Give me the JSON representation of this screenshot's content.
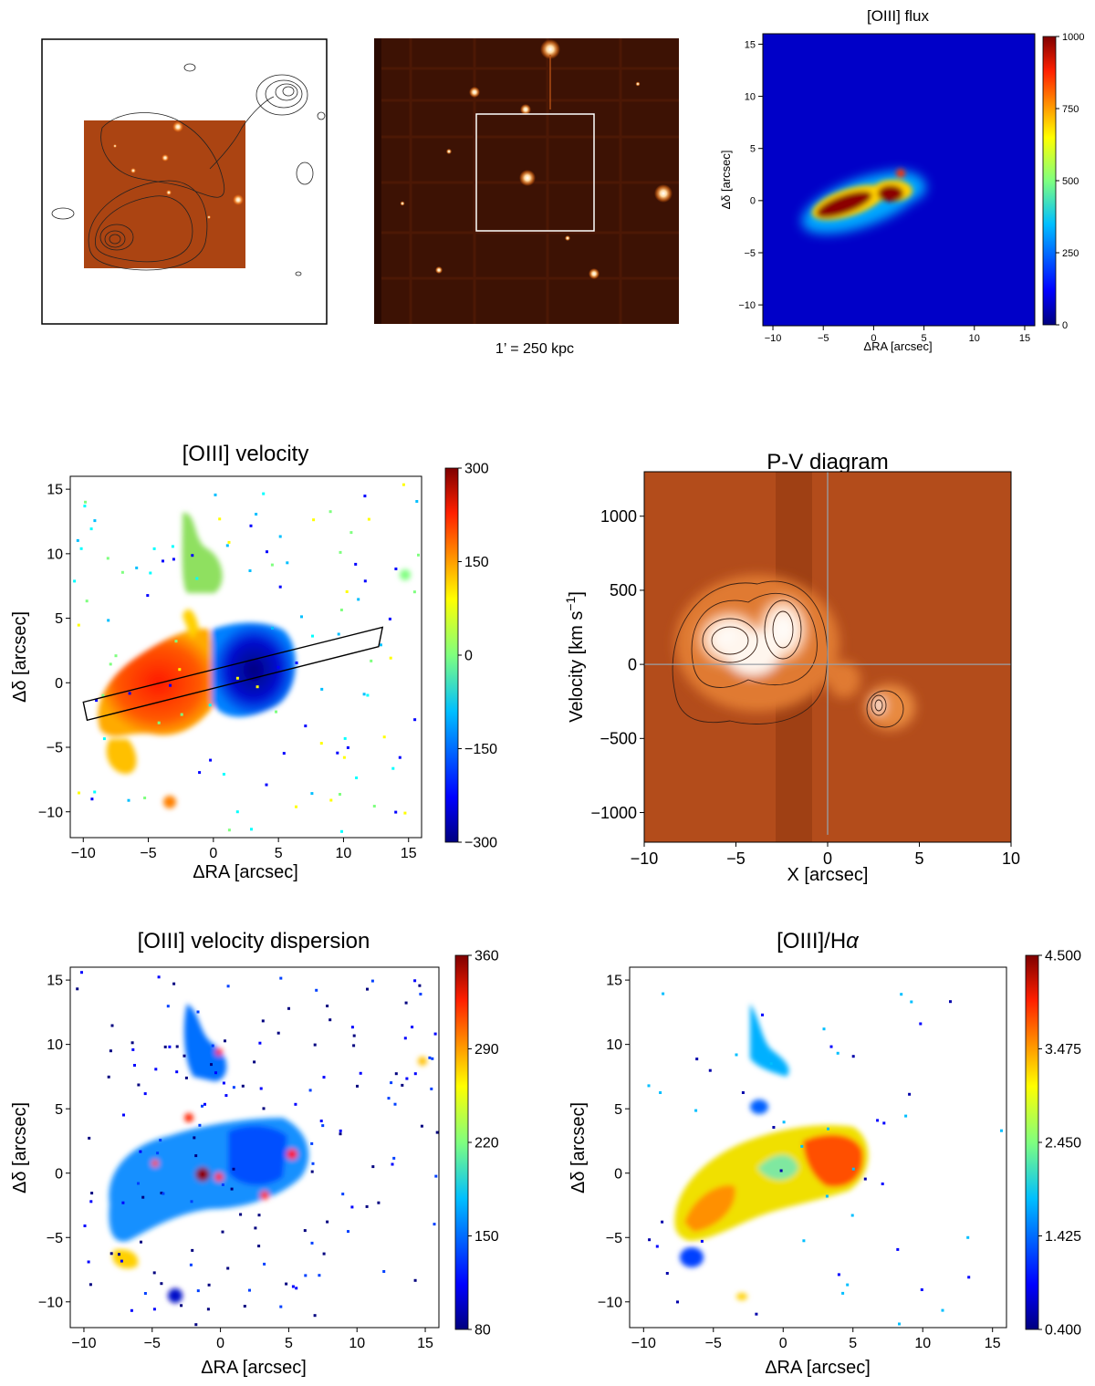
{
  "figure": {
    "scale_caption": "1’ = 250 kpc"
  },
  "colors": {
    "jet_stops": [
      "#00007f",
      "#0000ff",
      "#007fff",
      "#00ffff",
      "#7fff7f",
      "#ffff00",
      "#ff7f00",
      "#ff0000",
      "#7f0000"
    ],
    "hot_stops": [
      "#1a0500",
      "#5a1800",
      "#a63b00",
      "#e06a20",
      "#ffb070",
      "#ffffff"
    ],
    "grid_line": "#9aa0a6",
    "frame": "#000000"
  },
  "chart_data": [
    {
      "id": "radio-overlay",
      "type": "image",
      "title": "",
      "description_only": true
    },
    {
      "id": "wide-field",
      "type": "image",
      "title": "",
      "caption": "1’ = 250 kpc"
    },
    {
      "id": "oiii-flux",
      "type": "heatmap",
      "title": "[OIII] flux",
      "xlabel": "ΔRA [arcsec]",
      "ylabel": "Δδ [arcsec]",
      "xlim": [
        -11,
        16
      ],
      "ylim": [
        -12,
        16
      ],
      "xticks": [
        -10,
        -5,
        0,
        5,
        10,
        15
      ],
      "yticks": [
        -10,
        -5,
        0,
        5,
        10,
        15
      ],
      "colorbar": {
        "min": 0,
        "max": 1000,
        "ticks": [
          0,
          250,
          500,
          750,
          1000
        ],
        "cmap": "jet"
      }
    },
    {
      "id": "oiii-velocity",
      "type": "heatmap",
      "title": "[OIII] velocity",
      "xlabel": "ΔRA [arcsec]",
      "ylabel": "Δδ [arcsec]",
      "xlim": [
        -11,
        16
      ],
      "ylim": [
        -12,
        16
      ],
      "xticks": [
        -10,
        -5,
        0,
        5,
        10,
        15
      ],
      "yticks": [
        -10,
        -5,
        0,
        5,
        10,
        15
      ],
      "colorbar": {
        "min": -300,
        "max": 300,
        "ticks": [
          -300,
          -150,
          0,
          150,
          300
        ],
        "tick_labels": [
          "−300",
          "−150",
          "0",
          "150",
          "300"
        ],
        "cmap": "jet"
      },
      "slit": {
        "corners": [
          [
            -10,
            -1.5
          ],
          [
            13,
            4.3
          ],
          [
            12.7,
            2.8
          ],
          [
            -9.7,
            -2.9
          ]
        ]
      }
    },
    {
      "id": "pv-diagram",
      "type": "heatmap",
      "title": "P-V diagram",
      "xlabel": "X [arcsec]",
      "ylabel": "Velocity [km s⁻¹]",
      "ylabel_main": "Velocity [km s",
      "ylabel_sup": "−1",
      "ylabel_end": "]",
      "xlim": [
        -10,
        10
      ],
      "ylim": [
        -1200,
        1300
      ],
      "xticks": [
        -10,
        -5,
        0,
        5,
        10
      ],
      "yticks": [
        -1000,
        -500,
        0,
        500,
        1000
      ],
      "ytick_labels": [
        "−1000",
        "−500",
        "0",
        "500",
        "1000"
      ],
      "xtick_labels": [
        "−10",
        "−5",
        "0",
        "5",
        "10"
      ]
    },
    {
      "id": "oiii-dispersion",
      "type": "heatmap",
      "title": "[OIII] velocity dispersion",
      "xlabel": "ΔRA [arcsec]",
      "ylabel": "Δδ [arcsec]",
      "xlim": [
        -11,
        16
      ],
      "ylim": [
        -12,
        16
      ],
      "xticks": [
        -10,
        -5,
        0,
        5,
        10,
        15
      ],
      "yticks": [
        -10,
        -5,
        0,
        5,
        10,
        15
      ],
      "colorbar": {
        "min": 80,
        "max": 360,
        "ticks": [
          80,
          150,
          220,
          290,
          360
        ],
        "cmap": "jet"
      }
    },
    {
      "id": "oiii-halpha",
      "type": "heatmap",
      "title": "[OIII]/Hα",
      "title_main": "[OIII]/H",
      "title_greek": "α",
      "xlabel": "ΔRA [arcsec]",
      "ylabel": "Δδ [arcsec]",
      "xlim": [
        -11,
        16
      ],
      "ylim": [
        -12,
        16
      ],
      "xticks": [
        -10,
        -5,
        0,
        5,
        10,
        15
      ],
      "yticks": [
        -10,
        -5,
        0,
        5,
        10,
        15
      ],
      "colorbar": {
        "min": 0.4,
        "max": 4.5,
        "ticks": [
          0.4,
          1.425,
          2.45,
          3.475,
          4.5
        ],
        "tick_labels": [
          "0.400",
          "1.425",
          "2.450",
          "3.475",
          "4.500"
        ],
        "cmap": "jet"
      }
    }
  ],
  "tick_text": {
    "spatial": [
      "−10",
      "−5",
      "0",
      "5",
      "10",
      "15"
    ]
  }
}
